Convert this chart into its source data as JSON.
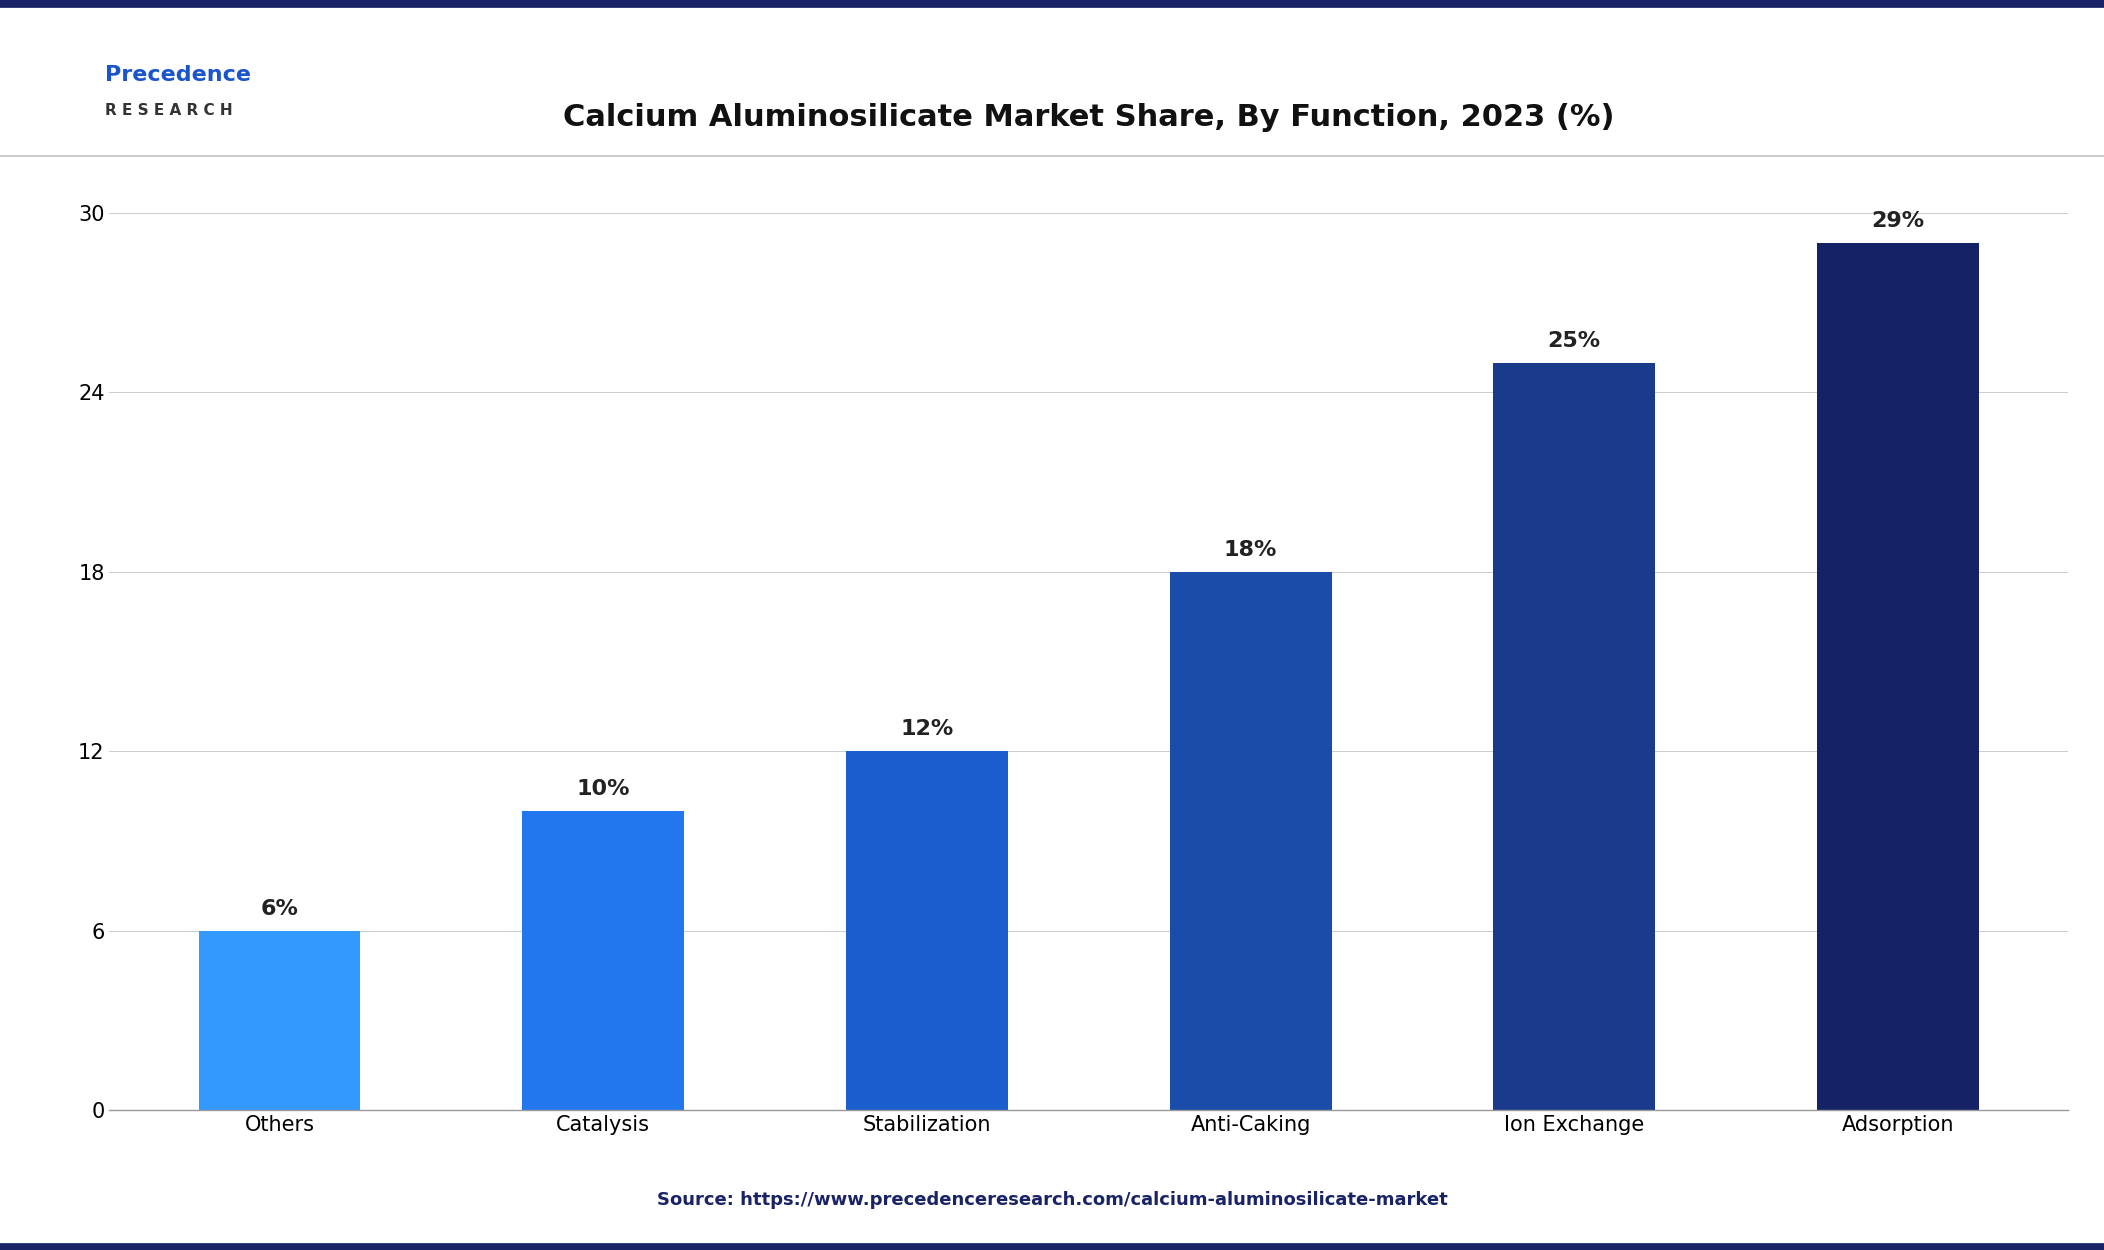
{
  "categories": [
    "Others",
    "Catalysis",
    "Stabilization",
    "Anti-Caking",
    "Ion Exchange",
    "Adsorption"
  ],
  "values": [
    6,
    10,
    12,
    18,
    25,
    29
  ],
  "bar_colors": [
    "#3399FF",
    "#2277EE",
    "#1A5DCC",
    "#1A4DAA",
    "#1A3A8C",
    "#152266"
  ],
  "title": "Calcium Aluminosilicate Market Share, By Function, 2023 (%)",
  "title_fontsize": 22,
  "ylabel_ticks": [
    0,
    6,
    12,
    18,
    24,
    30
  ],
  "ylim": [
    0,
    32
  ],
  "source_text": "Source: https://www.precedenceresearch.com/calcium-aluminosilicate-market",
  "background_color": "#FFFFFF",
  "plot_bg_color": "#FFFFFF",
  "bar_label_fontsize": 16,
  "tick_fontsize": 15,
  "source_fontsize": 13,
  "label_color": "#222222",
  "source_color": "#1A2366",
  "border_color": "#1A2366",
  "precedence_text": "Precedence",
  "research_text": "R E S E A R C H"
}
